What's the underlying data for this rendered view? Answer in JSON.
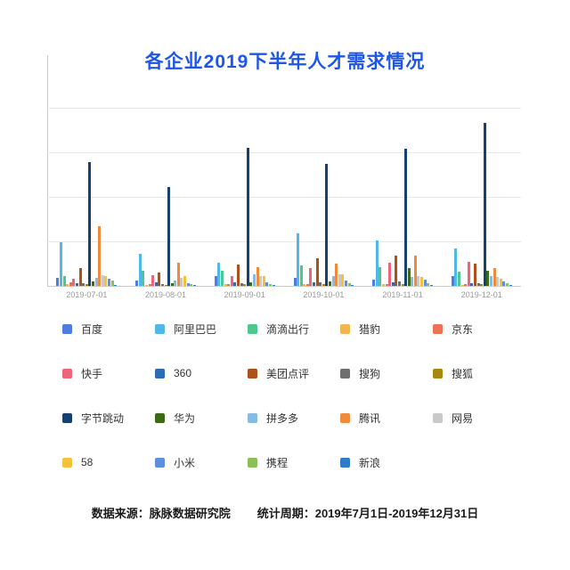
{
  "title": {
    "text": "各企业2019下半年人才需求情况",
    "color": "#1E56E8"
  },
  "footer": {
    "source_label": "数据来源：脉脉数据研究院",
    "period_label": "统计周期：2019年7月1日-2019年12月31日"
  },
  "chart_data": {
    "type": "bar",
    "title": "各企业2019下半年人才需求情况",
    "xlabel": "",
    "ylabel": "",
    "y_axis_tick_labels_visible": false,
    "ylim": [
      0,
      250
    ],
    "gridline_interval": 50,
    "grid": true,
    "legend_position": "bottom",
    "categories": [
      "2019-07-01",
      "2019-08-01",
      "2019-09-01",
      "2019-10-01",
      "2019-11-01",
      "2019-12-01"
    ],
    "series": [
      {
        "name": "百度",
        "color": "#4E7CE0",
        "values": [
          10,
          7,
          12,
          10,
          8,
          12
        ]
      },
      {
        "name": "阿里巴巴",
        "color": "#50B8E8",
        "values": [
          50,
          37,
          27,
          60,
          52,
          43
        ]
      },
      {
        "name": "滴滴出行",
        "color": "#4DC88C",
        "values": [
          12,
          18,
          18,
          24,
          22,
          17
        ]
      },
      {
        "name": "猎豹",
        "color": "#F3B64F",
        "values": [
          3,
          2,
          3,
          3,
          3,
          2
        ]
      },
      {
        "name": "京东",
        "color": "#EE7156",
        "values": [
          5,
          3,
          3,
          3,
          3,
          3
        ]
      },
      {
        "name": "快手",
        "color": "#EE647B",
        "values": [
          9,
          13,
          12,
          21,
          27,
          28
        ]
      },
      {
        "name": "360",
        "color": "#2A6CB5",
        "values": [
          4,
          5,
          5,
          5,
          5,
          4
        ]
      },
      {
        "name": "美团点评",
        "color": "#AF4F1B",
        "values": [
          21,
          16,
          25,
          32,
          35,
          26
        ]
      },
      {
        "name": "搜狗",
        "color": "#6F6F6F",
        "values": [
          4,
          3,
          4,
          5,
          6,
          4
        ]
      },
      {
        "name": "搜狐",
        "color": "#A8870E",
        "values": [
          3,
          2,
          3,
          3,
          3,
          3
        ]
      },
      {
        "name": "字节跳动",
        "color": "#16406F",
        "values": [
          140,
          112,
          156,
          138,
          155,
          184
        ]
      },
      {
        "name": "华为",
        "color": "#3D6B15",
        "values": [
          6,
          4,
          5,
          6,
          21,
          18
        ]
      },
      {
        "name": "拼多多",
        "color": "#86BBE4",
        "values": [
          10,
          7,
          14,
          12,
          11,
          12
        ]
      },
      {
        "name": "腾讯",
        "color": "#EF8B3B",
        "values": [
          68,
          27,
          22,
          26,
          35,
          21
        ]
      },
      {
        "name": "网易",
        "color": "#C9C9C9",
        "values": [
          13,
          10,
          12,
          14,
          12,
          11
        ]
      },
      {
        "name": "58",
        "color": "#F5C13D",
        "values": [
          12,
          12,
          12,
          14,
          11,
          9
        ]
      },
      {
        "name": "小米",
        "color": "#5E8FDE",
        "values": [
          9,
          4,
          5,
          7,
          8,
          6
        ]
      },
      {
        "name": "携程",
        "color": "#8CBF56",
        "values": [
          7,
          3,
          3,
          4,
          4,
          4
        ]
      },
      {
        "name": "新浪",
        "color": "#2E7CC9",
        "values": [
          2,
          2,
          2,
          2,
          2,
          2
        ]
      }
    ]
  }
}
